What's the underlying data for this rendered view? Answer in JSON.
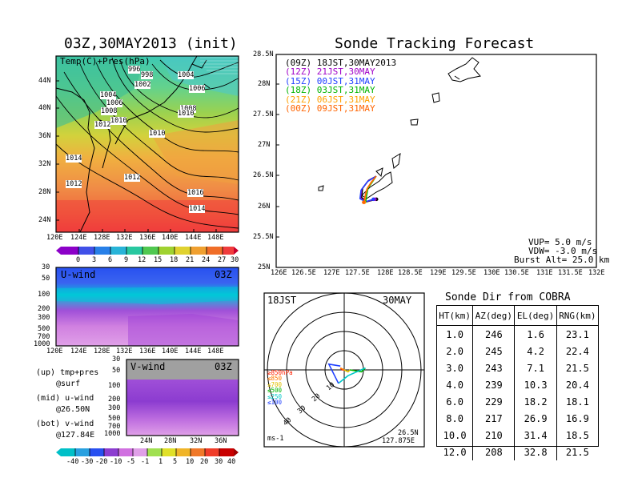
{
  "init_map": {
    "title": "03Z,30MAY2013 (init)",
    "overlay_label": "Temp(C)+Pres(hPa)",
    "lat_ticks": [
      "44N",
      "40N",
      "36N",
      "32N",
      "28N",
      "24N"
    ],
    "lon_ticks": [
      "120E",
      "124E",
      "128E",
      "132E",
      "136E",
      "140E",
      "144E",
      "148E"
    ],
    "pressure_labels": [
      "996",
      "998",
      "1002",
      "1004",
      "1006",
      "1004",
      "1006",
      "1008",
      "1010",
      "1008",
      "1010",
      "1012",
      "1010",
      "1014",
      "1012",
      "1012",
      "1016",
      "1014"
    ],
    "colorbar_ticks": [
      "0",
      "3",
      "6",
      "9",
      "12",
      "15",
      "18",
      "21",
      "24",
      "27",
      "30"
    ]
  },
  "u_wind": {
    "label": "U-wind",
    "time": "03Z",
    "p_ticks": [
      "30",
      "50",
      "100",
      "200",
      "300",
      "500",
      "700",
      "1000"
    ],
    "lon_ticks": [
      "120E",
      "124E",
      "128E",
      "132E",
      "136E",
      "140E",
      "144E",
      "148E"
    ]
  },
  "v_wind": {
    "label": "V-wind",
    "time": "03Z",
    "p_ticks": [
      "30",
      "50",
      "100",
      "200",
      "300",
      "500",
      "700",
      "1000"
    ],
    "lat_ticks": [
      "24N",
      "28N",
      "32N",
      "36N"
    ]
  },
  "legend_notes": {
    "up_1": "(up) tmp+pres",
    "up_2": "@surf",
    "mid_1": "(mid) u-wind",
    "mid_2": "@26.50N",
    "bot_1": "(bot) v-wind",
    "bot_2": "@127.84E"
  },
  "wind_colorbar_ticks": [
    "-40",
    "-30",
    "-20",
    "-10",
    "-5",
    "-1",
    "1",
    "5",
    "10",
    "20",
    "30",
    "40"
  ],
  "track_map": {
    "title": "Sonde Tracking Forecast",
    "lat_ticks": [
      "28.5N",
      "28N",
      "27.5N",
      "27N",
      "26.5N",
      "26N",
      "25.5N",
      "25N"
    ],
    "lon_ticks": [
      "126E",
      "126.5E",
      "127E",
      "127.5E",
      "128E",
      "128.5E",
      "129E",
      "129.5E",
      "130E",
      "130.5E",
      "131E",
      "131.5E",
      "132E"
    ],
    "legend": [
      {
        "code": "(09Z)",
        "time": "18JST,30MAY2013",
        "color": "#000000"
      },
      {
        "code": "(12Z)",
        "time": "21JST,30MAY",
        "color": "#a000c8"
      },
      {
        "code": "(15Z)",
        "time": "00JST,31MAY",
        "color": "#2040ff"
      },
      {
        "code": "(18Z)",
        "time": "03JST,31MAY",
        "color": "#00b400"
      },
      {
        "code": "(21Z)",
        "time": "06JST,31MAY",
        "color": "#ffa000"
      },
      {
        "code": "(00Z)",
        "time": "09JST,31MAY",
        "color": "#ff6400"
      }
    ],
    "params": {
      "vup": "VUP=  5.0 m/s",
      "vdw": "VDW= -3.0 m/s",
      "burst": "Burst Alt= 25.0 km"
    }
  },
  "polar": {
    "time_label": "18JST",
    "date_label": "30MAY",
    "lat": "26.5N",
    "lon": "127.875E",
    "units": "ms-1",
    "ring_labels": [
      "10",
      "20",
      "30",
      "40"
    ],
    "level_legend": [
      {
        "text": "≥850hPa",
        "color": "#ff2000"
      },
      {
        "text": "≤850",
        "color": "#ff7800"
      },
      {
        "text": "≤700",
        "color": "#e0c000"
      },
      {
        "text": "≤500",
        "color": "#00b400"
      },
      {
        "text": "≤250",
        "color": "#00c8c8"
      },
      {
        "text": "≤100",
        "color": "#2040ff"
      }
    ]
  },
  "sonde_table": {
    "title": "Sonde Dir from COBRA",
    "headers": [
      "HT(km)",
      "AZ(deg)",
      "EL(deg)",
      "RNG(km)"
    ],
    "rows": [
      [
        "1.0",
        "246",
        "1.6",
        "23.1"
      ],
      [
        "2.0",
        "245",
        "4.2",
        "22.4"
      ],
      [
        "3.0",
        "243",
        "7.1",
        "21.5"
      ],
      [
        "4.0",
        "239",
        "10.3",
        "20.4"
      ],
      [
        "6.0",
        "229",
        "18.2",
        "18.1"
      ],
      [
        "8.0",
        "217",
        "26.9",
        "16.9"
      ],
      [
        "10.0",
        "210",
        "31.4",
        "18.5"
      ],
      [
        "12.0",
        "208",
        "32.8",
        "21.5"
      ]
    ]
  },
  "chart_data": [
    {
      "type": "table",
      "title": "Sonde Dir from COBRA",
      "columns": [
        "HT(km)",
        "AZ(deg)",
        "EL(deg)",
        "RNG(km)"
      ],
      "rows": [
        [
          1.0,
          246,
          1.6,
          23.1
        ],
        [
          2.0,
          245,
          4.2,
          22.4
        ],
        [
          3.0,
          243,
          7.1,
          21.5
        ],
        [
          4.0,
          239,
          10.3,
          20.4
        ],
        [
          6.0,
          229,
          18.2,
          18.1
        ],
        [
          8.0,
          217,
          26.9,
          16.9
        ],
        [
          10.0,
          210,
          31.4,
          18.5
        ],
        [
          12.0,
          208,
          32.8,
          21.5
        ]
      ]
    },
    {
      "type": "line",
      "title": "Sonde Tracking Forecast",
      "xlim": [
        126,
        132
      ],
      "ylim": [
        25,
        28.5
      ],
      "series": [
        {
          "name": "(09Z) 18JST,30MAY2013",
          "color": "#000000",
          "x": [
            127.875,
            127.73,
            127.62,
            127.6,
            127.7,
            127.88
          ],
          "y": [
            26.5,
            26.43,
            26.3,
            26.15,
            26.08,
            26.12
          ]
        },
        {
          "name": "(12Z) 21JST,30MAY",
          "color": "#a000c8",
          "x": [
            127.875,
            127.72,
            127.6,
            127.58,
            127.68,
            127.85
          ],
          "y": [
            26.5,
            26.42,
            26.28,
            26.14,
            26.08,
            26.12
          ]
        },
        {
          "name": "(15Z) 00JST,31MAY",
          "color": "#2040ff",
          "x": [
            127.875,
            127.71,
            127.59,
            127.57,
            127.67,
            127.82
          ],
          "y": [
            26.5,
            26.41,
            26.27,
            26.13,
            26.08,
            26.12
          ]
        },
        {
          "name": "(18Z) 03JST,31MAY",
          "color": "#00b400",
          "x": [
            127.875,
            127.8,
            127.72,
            127.7,
            127.68,
            127.66
          ],
          "y": [
            26.5,
            26.4,
            26.3,
            26.2,
            26.1,
            26.08
          ]
        },
        {
          "name": "(21Z) 06JST,31MAY",
          "color": "#ffa000",
          "x": [
            127.875,
            127.79,
            127.71,
            127.68,
            127.66,
            127.65
          ],
          "y": [
            26.5,
            26.4,
            26.3,
            26.2,
            26.1,
            26.07
          ]
        },
        {
          "name": "(00Z) 09JST,31MAY",
          "color": "#ff6400",
          "x": [
            127.875,
            127.78,
            127.7,
            127.67,
            127.65,
            127.64
          ],
          "y": [
            26.5,
            26.4,
            26.29,
            26.19,
            26.1,
            26.07
          ]
        }
      ]
    },
    {
      "type": "line",
      "title": "",
      "description_axes": "polar hodograph, rings 10/20/30/40 ms-1",
      "series": [
        {
          "name": "≥850hPa",
          "color": "#ff2000",
          "u": [
            0,
            -1,
            -2
          ],
          "v": [
            0,
            0,
            1
          ]
        },
        {
          "name": "≤850",
          "color": "#ff7800",
          "u": [
            -2,
            0
          ],
          "v": [
            1,
            0
          ]
        },
        {
          "name": "≤700",
          "color": "#e0c000",
          "u": [
            0,
            2,
            3
          ],
          "v": [
            0,
            -1,
            0
          ]
        },
        {
          "name": "≤500",
          "color": "#00b400",
          "u": [
            3,
            9,
            11
          ],
          "v": [
            0,
            -1,
            1
          ]
        },
        {
          "name": "≤250",
          "color": "#00c8c8",
          "u": [
            11,
            2,
            -3
          ],
          "v": [
            1,
            -3,
            -7
          ]
        },
        {
          "name": "≤100",
          "color": "#2040ff",
          "u": [
            -3,
            -8,
            -2
          ],
          "v": [
            -7,
            3,
            2
          ]
        }
      ]
    }
  ]
}
